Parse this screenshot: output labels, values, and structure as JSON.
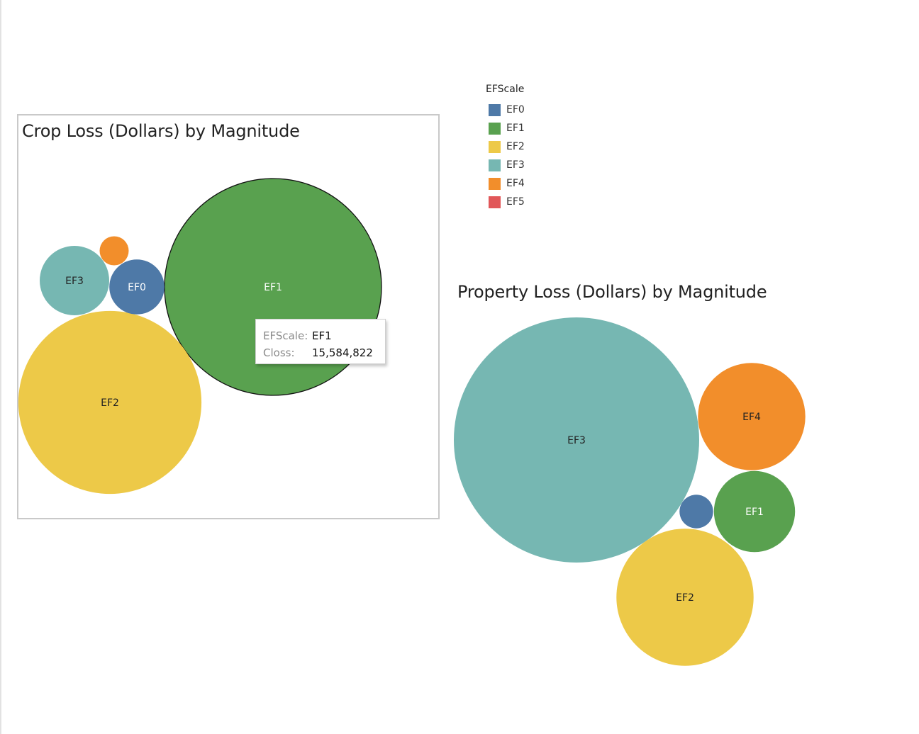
{
  "legend": {
    "title": "EFScale",
    "items": [
      {
        "label": "EF0",
        "color": "#4e79a7"
      },
      {
        "label": "EF1",
        "color": "#59a14f"
      },
      {
        "label": "EF2",
        "color": "#edc948"
      },
      {
        "label": "EF3",
        "color": "#76b7b2"
      },
      {
        "label": "EF4",
        "color": "#f28e2b"
      },
      {
        "label": "EF5",
        "color": "#e15759"
      }
    ]
  },
  "tooltip": {
    "scale_key": "EFScale:",
    "scale_value": "EF1",
    "loss_key": "Closs:",
    "loss_value": "15,584,822"
  },
  "chart_data": [
    {
      "type": "bubble",
      "title": "Crop Loss (Dollars) by Magnitude",
      "series": [
        {
          "name": "EF1",
          "values": [
            15584822
          ],
          "label": "EF1"
        },
        {
          "name": "EF2",
          "values": [
            11100000
          ],
          "label": "EF2"
        },
        {
          "name": "EF3",
          "values": [
            1600000
          ],
          "label": "EF3"
        },
        {
          "name": "EF0",
          "values": [
            1000000
          ],
          "label": "EF0"
        },
        {
          "name": "EF4",
          "values": [
            280000
          ],
          "label": ""
        }
      ]
    },
    {
      "type": "bubble",
      "title": "Property Loss (Dollars) by Magnitude",
      "series": [
        {
          "name": "EF3",
          "values": [
            2560000000
          ],
          "label": "EF3"
        },
        {
          "name": "EF4",
          "values": [
            490000000
          ],
          "label": "EF4"
        },
        {
          "name": "EF2",
          "values": [
            800000000
          ],
          "label": "EF2"
        },
        {
          "name": "EF1",
          "values": [
            280000000
          ],
          "label": "EF1"
        },
        {
          "name": "EF0",
          "values": [
            48000000
          ],
          "label": ""
        }
      ]
    }
  ]
}
